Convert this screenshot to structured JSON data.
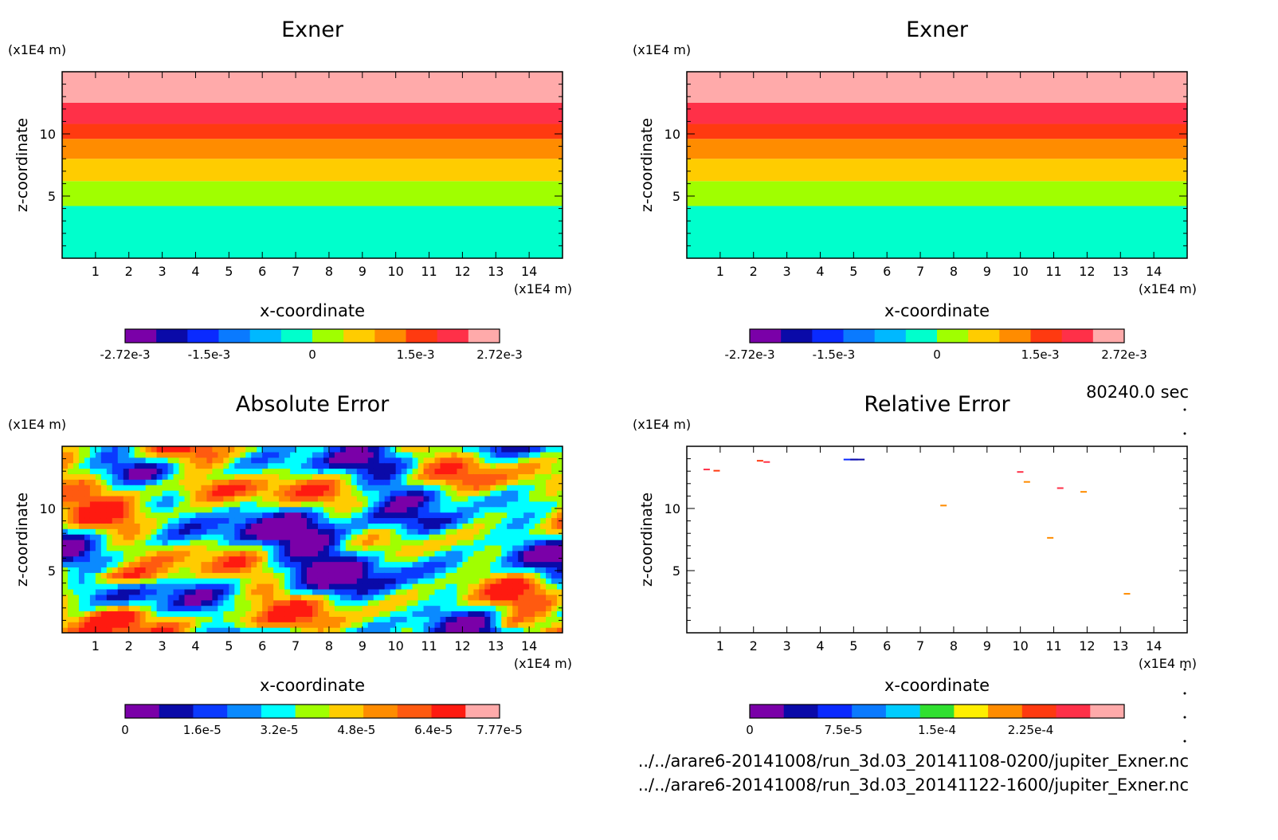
{
  "timestamp": "80240.0 sec",
  "footer": {
    "file1": "../../arare6-20141008/run_3d.03_20141108-0200/jupiter_Exner.nc",
    "file2": "../../arare6-20141008/run_3d.03_20141122-1600/jupiter_Exner.nc"
  },
  "colors": {
    "exner_levels": [
      "#7a00a8",
      "#0a0aa8",
      "#0a2aff",
      "#0a7aff",
      "#00b8ff",
      "#00ffcc",
      "#a0ff00",
      "#ffcc00",
      "#ff8c00",
      "#ff3a10",
      "#ff3048",
      "#ffaaaa"
    ],
    "abs_levels": [
      "#7a00a8",
      "#0a0aa8",
      "#0a3aff",
      "#0a8aff",
      "#00ffff",
      "#a0ff00",
      "#ffcc00",
      "#ff8c00",
      "#ff5a10",
      "#ff1a10",
      "#ffaaaa"
    ],
    "rel_levels": [
      "#7a00a8",
      "#0a0aa8",
      "#0a2aff",
      "#0a7aff",
      "#00ccff",
      "#30e030",
      "#ffee00",
      "#ff8c00",
      "#ff3a10",
      "#ff3048",
      "#ffaaaa"
    ]
  },
  "chart_data": [
    {
      "type": "heatmap",
      "title": "Exner",
      "xlabel": "x-coordinate",
      "ylabel": "z-coordinate",
      "x_unit": "(x1E4 m)",
      "y_unit": "(x1E4 m)",
      "xlim": [
        0,
        15
      ],
      "ylim": [
        0,
        15
      ],
      "xticks": [
        1,
        2,
        3,
        4,
        5,
        6,
        7,
        8,
        9,
        10,
        11,
        12,
        13,
        14
      ],
      "yticks": [
        5,
        10
      ],
      "bands_z": [
        [
          0,
          4.2,
          5
        ],
        [
          4.2,
          6.2,
          6
        ],
        [
          6.2,
          8.0,
          7
        ],
        [
          8.0,
          9.6,
          8
        ],
        [
          9.6,
          10.8,
          9
        ],
        [
          10.8,
          12.5,
          10
        ],
        [
          12.5,
          15,
          11
        ]
      ],
      "colorbar": {
        "ticks": [
          "-2.72e-3",
          "-1.5e-3",
          "0",
          "1.5e-3",
          "2.72e-3"
        ],
        "tick_values": [
          -0.00272,
          -0.0015,
          0,
          0.0015,
          0.00272
        ],
        "range": [
          -0.00272,
          0.00272
        ]
      }
    },
    {
      "type": "heatmap",
      "title": "Exner",
      "xlabel": "x-coordinate",
      "ylabel": "z-coordinate",
      "x_unit": "(x1E4 m)",
      "y_unit": "(x1E4 m)",
      "xlim": [
        0,
        15
      ],
      "ylim": [
        0,
        15
      ],
      "xticks": [
        1,
        2,
        3,
        4,
        5,
        6,
        7,
        8,
        9,
        10,
        11,
        12,
        13,
        14
      ],
      "yticks": [
        5,
        10
      ],
      "bands_z": [
        [
          0,
          4.2,
          5
        ],
        [
          4.2,
          6.2,
          6
        ],
        [
          6.2,
          8.0,
          7
        ],
        [
          8.0,
          9.6,
          8
        ],
        [
          9.6,
          10.8,
          9
        ],
        [
          10.8,
          12.5,
          10
        ],
        [
          12.5,
          15,
          11
        ]
      ],
      "colorbar": {
        "ticks": [
          "-2.72e-3",
          "-1.5e-3",
          "0",
          "1.5e-3",
          "2.72e-3"
        ],
        "tick_values": [
          -0.00272,
          -0.0015,
          0,
          0.0015,
          0.00272
        ],
        "range": [
          -0.00272,
          0.00272
        ]
      }
    },
    {
      "type": "heatmap",
      "title": "Absolute Error",
      "xlabel": "x-coordinate",
      "ylabel": "z-coordinate",
      "x_unit": "(x1E4 m)",
      "y_unit": "(x1E4 m)",
      "xlim": [
        0,
        15
      ],
      "ylim": [
        0,
        15
      ],
      "xticks": [
        1,
        2,
        3,
        4,
        5,
        6,
        7,
        8,
        9,
        10,
        11,
        12,
        13,
        14
      ],
      "yticks": [
        5,
        10
      ],
      "colorbar": {
        "ticks": [
          "0",
          "1.6e-5",
          "3.2e-5",
          "4.8e-5",
          "6.4e-5",
          "7.77e-5"
        ],
        "tick_values": [
          0,
          1.6e-05,
          3.2e-05,
          4.8e-05,
          6.4e-05,
          7.77e-05
        ],
        "range": [
          0,
          7.77e-05
        ]
      }
    },
    {
      "type": "heatmap",
      "title": "Relative Error",
      "xlabel": "x-coordinate",
      "ylabel": "z-coordinate",
      "x_unit": "(x1E4 m)",
      "y_unit": "(x1E4 m)",
      "xlim": [
        0,
        15
      ],
      "ylim": [
        0,
        15
      ],
      "xticks": [
        1,
        2,
        3,
        4,
        5,
        6,
        7,
        8,
        9,
        10,
        11,
        12,
        13,
        14
      ],
      "yticks": [
        5,
        10
      ],
      "colorbar": {
        "ticks": [
          "0",
          "7.5e-5",
          "1.5e-4",
          "2.25e-4"
        ],
        "tick_values": [
          0,
          7.5e-05,
          0.00015,
          0.000225
        ],
        "range": [
          0,
          0.0003
        ]
      },
      "specks": [
        [
          0.5,
          13.2,
          9
        ],
        [
          0.8,
          13.1,
          8
        ],
        [
          2.1,
          13.9,
          8
        ],
        [
          2.3,
          13.8,
          9
        ],
        [
          4.7,
          14.0,
          2
        ],
        [
          4.9,
          14.0,
          1
        ],
        [
          7.6,
          10.3,
          7
        ],
        [
          9.9,
          13.0,
          9
        ],
        [
          10.1,
          12.2,
          7
        ],
        [
          11.1,
          11.7,
          9
        ],
        [
          11.8,
          11.4,
          7
        ],
        [
          10.8,
          7.7,
          7
        ],
        [
          13.1,
          3.2,
          7
        ]
      ]
    }
  ]
}
